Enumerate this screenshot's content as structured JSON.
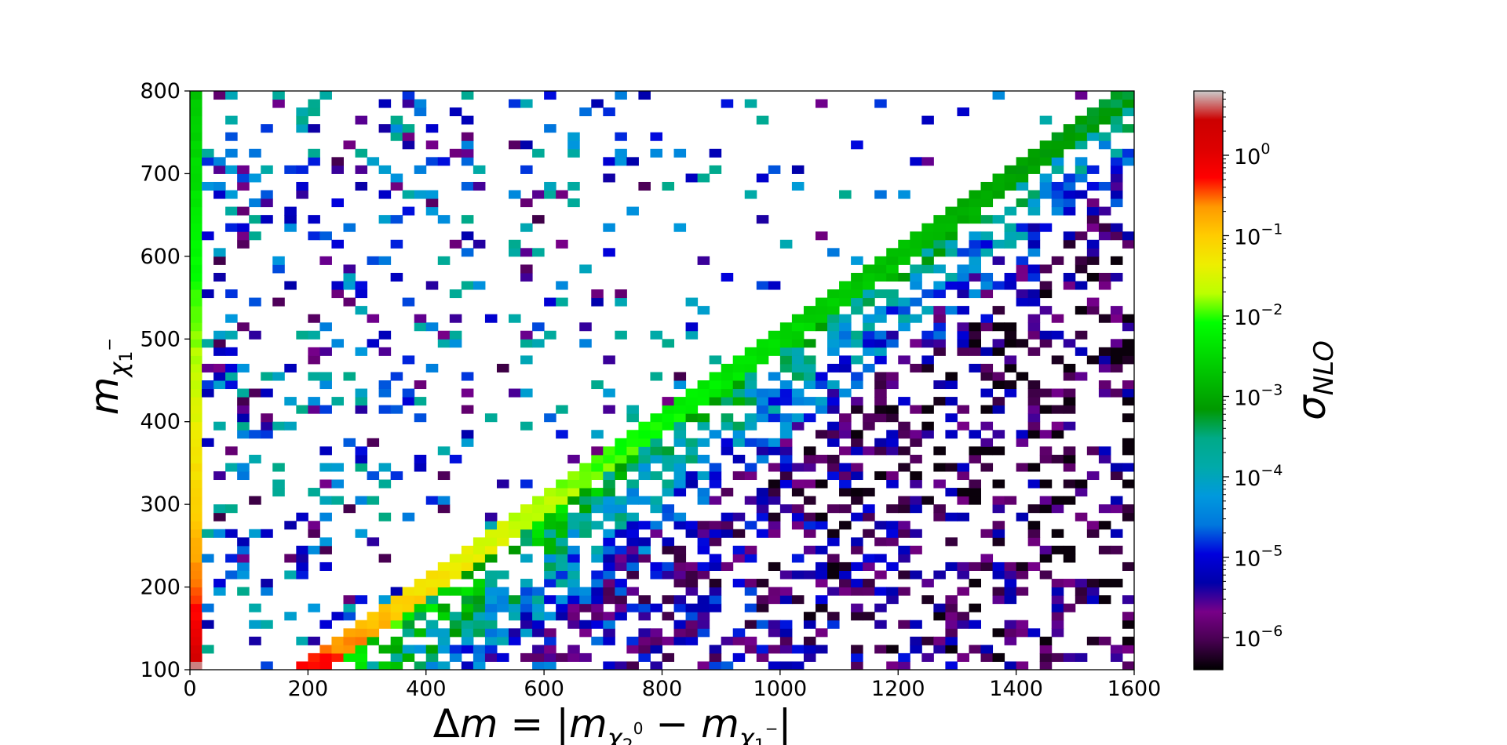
{
  "chart_data": {
    "type": "heatmap",
    "xlabel": "Δm = |m_{χ₂⁰} − m_{χ₁⁻}|",
    "ylabel": "m_{χ₁⁻}",
    "xlim": [
      0,
      1600
    ],
    "ylim": [
      100,
      800
    ],
    "x_ticks": [
      "0",
      "200",
      "400",
      "600",
      "800",
      "1000",
      "1200",
      "1400",
      "1600"
    ],
    "y_ticks": [
      "100",
      "200",
      "300",
      "400",
      "500",
      "600",
      "700",
      "800"
    ],
    "colorbar": {
      "label": "σ_NLO",
      "scale": "log",
      "range_log10": [
        -6.4,
        0.8
      ],
      "ticks": [
        {
          "base": "10",
          "exp": "0",
          "log10": 0
        },
        {
          "base": "10",
          "exp": "−1",
          "log10": -1
        },
        {
          "base": "10",
          "exp": "−2",
          "log10": -2
        },
        {
          "base": "10",
          "exp": "−3",
          "log10": -3
        },
        {
          "base": "10",
          "exp": "−4",
          "log10": -4
        },
        {
          "base": "10",
          "exp": "−5",
          "log10": -5
        },
        {
          "base": "10",
          "exp": "−6",
          "log10": -6
        }
      ],
      "colormap": "nipy_spectral"
    },
    "bin_width_x": 20,
    "bin_width_y": 10,
    "features": {
      "degenerate_column": {
        "dm": [
          0,
          20
        ],
        "description_values": "log10 sigma from ~0.6 at m=100 to ~-2.8 at m=800"
      },
      "diagonal_edge": {
        "m_at_dm200": 100,
        "m_at_dm1600": 800,
        "log10_sigma_at_m100": 0.1,
        "log10_sigma_at_m800": -3.2
      },
      "scatter_below_edge": "log10 sigma between ~-6.3 and ~-3.5, lower for larger Δm",
      "scatter_above_edge": "sparse, log10 sigma between ~-6.3 and ~-3.5"
    }
  }
}
